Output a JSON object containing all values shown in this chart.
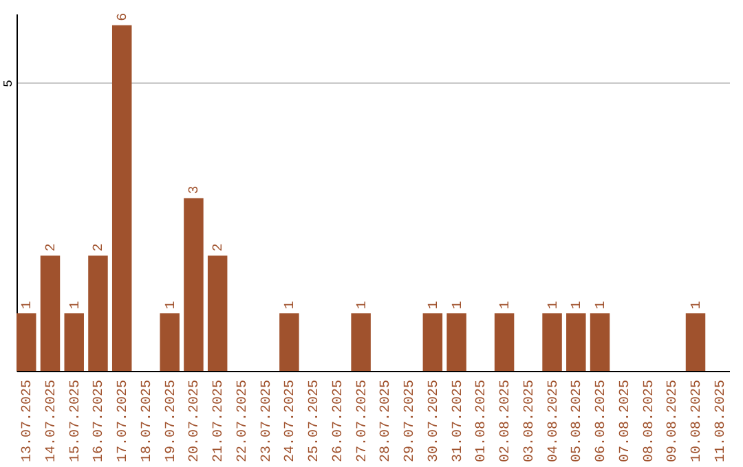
{
  "chart_data": {
    "type": "bar",
    "categories": [
      "13.07.2025",
      "14.07.2025",
      "15.07.2025",
      "16.07.2025",
      "17.07.2025",
      "18.07.2025",
      "19.07.2025",
      "20.07.2025",
      "21.07.2025",
      "22.07.2025",
      "23.07.2025",
      "24.07.2025",
      "25.07.2025",
      "26.07.2025",
      "27.07.2025",
      "28.07.2025",
      "29.07.2025",
      "30.07.2025",
      "31.07.2025",
      "01.08.2025",
      "02.08.2025",
      "03.08.2025",
      "04.08.2025",
      "05.08.2025",
      "06.08.2025",
      "07.08.2025",
      "08.08.2025",
      "09.08.2025",
      "10.08.2025",
      "11.08.2025"
    ],
    "values": [
      1,
      2,
      1,
      2,
      6,
      0,
      1,
      3,
      2,
      0,
      0,
      1,
      0,
      0,
      1,
      0,
      0,
      1,
      1,
      0,
      1,
      0,
      1,
      1,
      1,
      0,
      0,
      0,
      1,
      0
    ],
    "value_labels": [
      "1",
      "2",
      "1",
      "2",
      "6",
      null,
      "1",
      "3",
      "2",
      null,
      null,
      "1",
      null,
      null,
      "1",
      null,
      null,
      "1",
      "1",
      null,
      "1",
      null,
      "1",
      "1",
      "1",
      null,
      null,
      null,
      "1",
      null
    ],
    "color": "#a0522d",
    "ylim": [
      0,
      6.2
    ],
    "yticks": [
      5
    ],
    "grid": "y"
  }
}
